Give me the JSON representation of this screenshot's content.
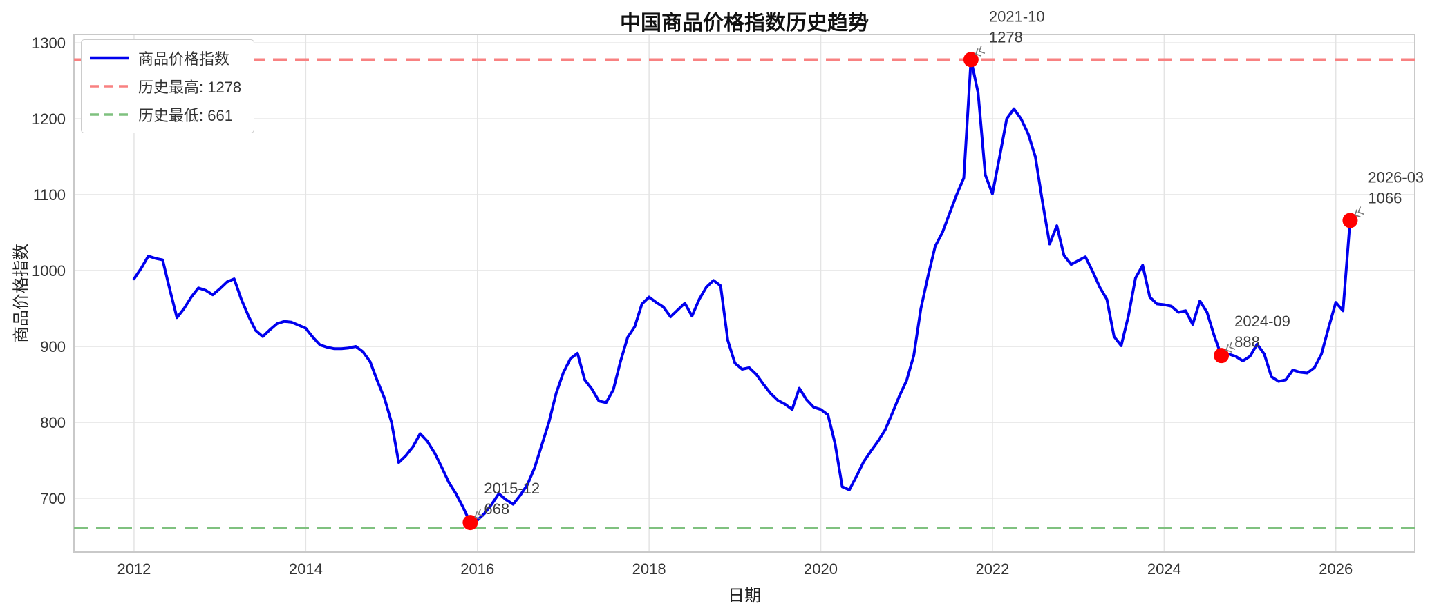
{
  "chart_data": {
    "type": "line",
    "title": "中国商品价格指数历史趋势",
    "xlabel": "日期",
    "ylabel": "商品价格指数",
    "x_ticks": [
      2012,
      2014,
      2016,
      2018,
      2020,
      2022,
      2024,
      2026
    ],
    "y_ticks": [
      700,
      800,
      900,
      1000,
      1100,
      1200,
      1300
    ],
    "xlim": [
      2011.3,
      2026.92
    ],
    "ylim": [
      629,
      1311
    ],
    "grid": true,
    "colors": {
      "price_line": "#0000ee",
      "max_line": "#f88181",
      "min_line": "#7fc17f",
      "marker": "#ff0000",
      "gridline": "#e4e4e4",
      "spine": "#c9c9c9",
      "annotation_text": "#3c3c3c"
    },
    "legend": {
      "position": "upper-left",
      "entries": [
        {
          "label": "商品价格指数",
          "color": "#0000ee",
          "style": "solid"
        },
        {
          "label": "历史最高: 1278",
          "color": "#f88181",
          "style": "dashed"
        },
        {
          "label": "历史最低: 661",
          "color": "#7fc17f",
          "style": "dashed"
        }
      ]
    },
    "reference_lines": [
      {
        "name": "历史最高",
        "value": 1278,
        "color": "#f88181",
        "style": "dashed"
      },
      {
        "name": "历史最低",
        "value": 661,
        "color": "#7fc17f",
        "style": "dashed"
      }
    ],
    "annotations": [
      {
        "date": "2015-12",
        "value": 668
      },
      {
        "date": "2021-10",
        "value": 1278
      },
      {
        "date": "2024-09",
        "value": 888
      },
      {
        "date": "2026-03",
        "value": 1066
      }
    ],
    "series": [
      {
        "name": "商品价格指数",
        "color": "#0000ee",
        "points": [
          [
            "2012-01",
            989
          ],
          [
            "2012-02",
            1003
          ],
          [
            "2012-03",
            1019
          ],
          [
            "2012-04",
            1016
          ],
          [
            "2012-05",
            1014
          ],
          [
            "2012-06",
            975
          ],
          [
            "2012-07",
            938
          ],
          [
            "2012-08",
            950
          ],
          [
            "2012-09",
            965
          ],
          [
            "2012-10",
            977
          ],
          [
            "2012-11",
            974
          ],
          [
            "2012-12",
            968
          ],
          [
            "2013-01",
            976
          ],
          [
            "2013-02",
            985
          ],
          [
            "2013-03",
            989
          ],
          [
            "2013-04",
            962
          ],
          [
            "2013-05",
            940
          ],
          [
            "2013-06",
            921
          ],
          [
            "2013-07",
            913
          ],
          [
            "2013-08",
            922
          ],
          [
            "2013-09",
            930
          ],
          [
            "2013-10",
            933
          ],
          [
            "2013-11",
            932
          ],
          [
            "2013-12",
            928
          ],
          [
            "2014-01",
            924
          ],
          [
            "2014-02",
            912
          ],
          [
            "2014-03",
            902
          ],
          [
            "2014-04",
            899
          ],
          [
            "2014-05",
            897
          ],
          [
            "2014-06",
            897
          ],
          [
            "2014-07",
            898
          ],
          [
            "2014-08",
            900
          ],
          [
            "2014-09",
            893
          ],
          [
            "2014-10",
            880
          ],
          [
            "2014-11",
            855
          ],
          [
            "2014-12",
            832
          ],
          [
            "2015-01",
            800
          ],
          [
            "2015-02",
            747
          ],
          [
            "2015-03",
            756
          ],
          [
            "2015-04",
            768
          ],
          [
            "2015-05",
            785
          ],
          [
            "2015-06",
            775
          ],
          [
            "2015-07",
            760
          ],
          [
            "2015-08",
            741
          ],
          [
            "2015-09",
            721
          ],
          [
            "2015-10",
            706
          ],
          [
            "2015-11",
            688
          ],
          [
            "2015-12",
            668
          ],
          [
            "2016-01",
            671
          ],
          [
            "2016-02",
            680
          ],
          [
            "2016-03",
            692
          ],
          [
            "2016-04",
            706
          ],
          [
            "2016-05",
            698
          ],
          [
            "2016-06",
            692
          ],
          [
            "2016-07",
            704
          ],
          [
            "2016-08",
            718
          ],
          [
            "2016-09",
            740
          ],
          [
            "2016-10",
            770
          ],
          [
            "2016-11",
            800
          ],
          [
            "2016-12",
            838
          ],
          [
            "2017-01",
            865
          ],
          [
            "2017-02",
            884
          ],
          [
            "2017-03",
            891
          ],
          [
            "2017-04",
            856
          ],
          [
            "2017-05",
            844
          ],
          [
            "2017-06",
            828
          ],
          [
            "2017-07",
            826
          ],
          [
            "2017-08",
            843
          ],
          [
            "2017-09",
            880
          ],
          [
            "2017-10",
            912
          ],
          [
            "2017-11",
            926
          ],
          [
            "2017-12",
            956
          ],
          [
            "2018-01",
            965
          ],
          [
            "2018-02",
            958
          ],
          [
            "2018-03",
            952
          ],
          [
            "2018-04",
            939
          ],
          [
            "2018-05",
            948
          ],
          [
            "2018-06",
            957
          ],
          [
            "2018-07",
            940
          ],
          [
            "2018-08",
            962
          ],
          [
            "2018-09",
            978
          ],
          [
            "2018-10",
            987
          ],
          [
            "2018-11",
            980
          ],
          [
            "2018-12",
            908
          ],
          [
            "2019-01",
            878
          ],
          [
            "2019-02",
            870
          ],
          [
            "2019-03",
            872
          ],
          [
            "2019-04",
            863
          ],
          [
            "2019-05",
            850
          ],
          [
            "2019-06",
            838
          ],
          [
            "2019-07",
            829
          ],
          [
            "2019-08",
            824
          ],
          [
            "2019-09",
            817
          ],
          [
            "2019-10",
            845
          ],
          [
            "2019-11",
            830
          ],
          [
            "2019-12",
            820
          ],
          [
            "2020-01",
            817
          ],
          [
            "2020-02",
            810
          ],
          [
            "2020-03",
            772
          ],
          [
            "2020-04",
            715
          ],
          [
            "2020-05",
            711
          ],
          [
            "2020-06",
            729
          ],
          [
            "2020-07",
            748
          ],
          [
            "2020-08",
            762
          ],
          [
            "2020-09",
            775
          ],
          [
            "2020-10",
            790
          ],
          [
            "2020-11",
            812
          ],
          [
            "2020-12",
            835
          ],
          [
            "2021-01",
            855
          ],
          [
            "2021-02",
            888
          ],
          [
            "2021-03",
            950
          ],
          [
            "2021-04",
            993
          ],
          [
            "2021-05",
            1032
          ],
          [
            "2021-06",
            1050
          ],
          [
            "2021-07",
            1075
          ],
          [
            "2021-08",
            1100
          ],
          [
            "2021-09",
            1122
          ],
          [
            "2021-10",
            1278
          ],
          [
            "2021-11",
            1234
          ],
          [
            "2021-12",
            1126
          ],
          [
            "2022-01",
            1101
          ],
          [
            "2022-02",
            1150
          ],
          [
            "2022-03",
            1200
          ],
          [
            "2022-04",
            1213
          ],
          [
            "2022-05",
            1200
          ],
          [
            "2022-06",
            1180
          ],
          [
            "2022-07",
            1150
          ],
          [
            "2022-08",
            1090
          ],
          [
            "2022-09",
            1035
          ],
          [
            "2022-10",
            1059
          ],
          [
            "2022-11",
            1020
          ],
          [
            "2022-12",
            1008
          ],
          [
            "2023-01",
            1013
          ],
          [
            "2023-02",
            1018
          ],
          [
            "2023-03",
            999
          ],
          [
            "2023-04",
            978
          ],
          [
            "2023-05",
            962
          ],
          [
            "2023-06",
            913
          ],
          [
            "2023-07",
            901
          ],
          [
            "2023-08",
            940
          ],
          [
            "2023-09",
            990
          ],
          [
            "2023-10",
            1007
          ],
          [
            "2023-11",
            965
          ],
          [
            "2023-12",
            956
          ],
          [
            "2024-01",
            955
          ],
          [
            "2024-02",
            953
          ],
          [
            "2024-03",
            945
          ],
          [
            "2024-04",
            947
          ],
          [
            "2024-05",
            929
          ],
          [
            "2024-06",
            960
          ],
          [
            "2024-07",
            945
          ],
          [
            "2024-08",
            914
          ],
          [
            "2024-09",
            888
          ],
          [
            "2024-10",
            890
          ],
          [
            "2024-11",
            887
          ],
          [
            "2024-12",
            881
          ],
          [
            "2025-01",
            887
          ],
          [
            "2025-02",
            903
          ],
          [
            "2025-03",
            890
          ],
          [
            "2025-04",
            860
          ],
          [
            "2025-05",
            854
          ],
          [
            "2025-06",
            856
          ],
          [
            "2025-07",
            869
          ],
          [
            "2025-08",
            866
          ],
          [
            "2025-09",
            865
          ],
          [
            "2025-10",
            872
          ],
          [
            "2025-11",
            890
          ],
          [
            "2025-12",
            925
          ],
          [
            "2026-01",
            958
          ],
          [
            "2026-02",
            947
          ],
          [
            "2026-03",
            1066
          ]
        ]
      }
    ]
  }
}
